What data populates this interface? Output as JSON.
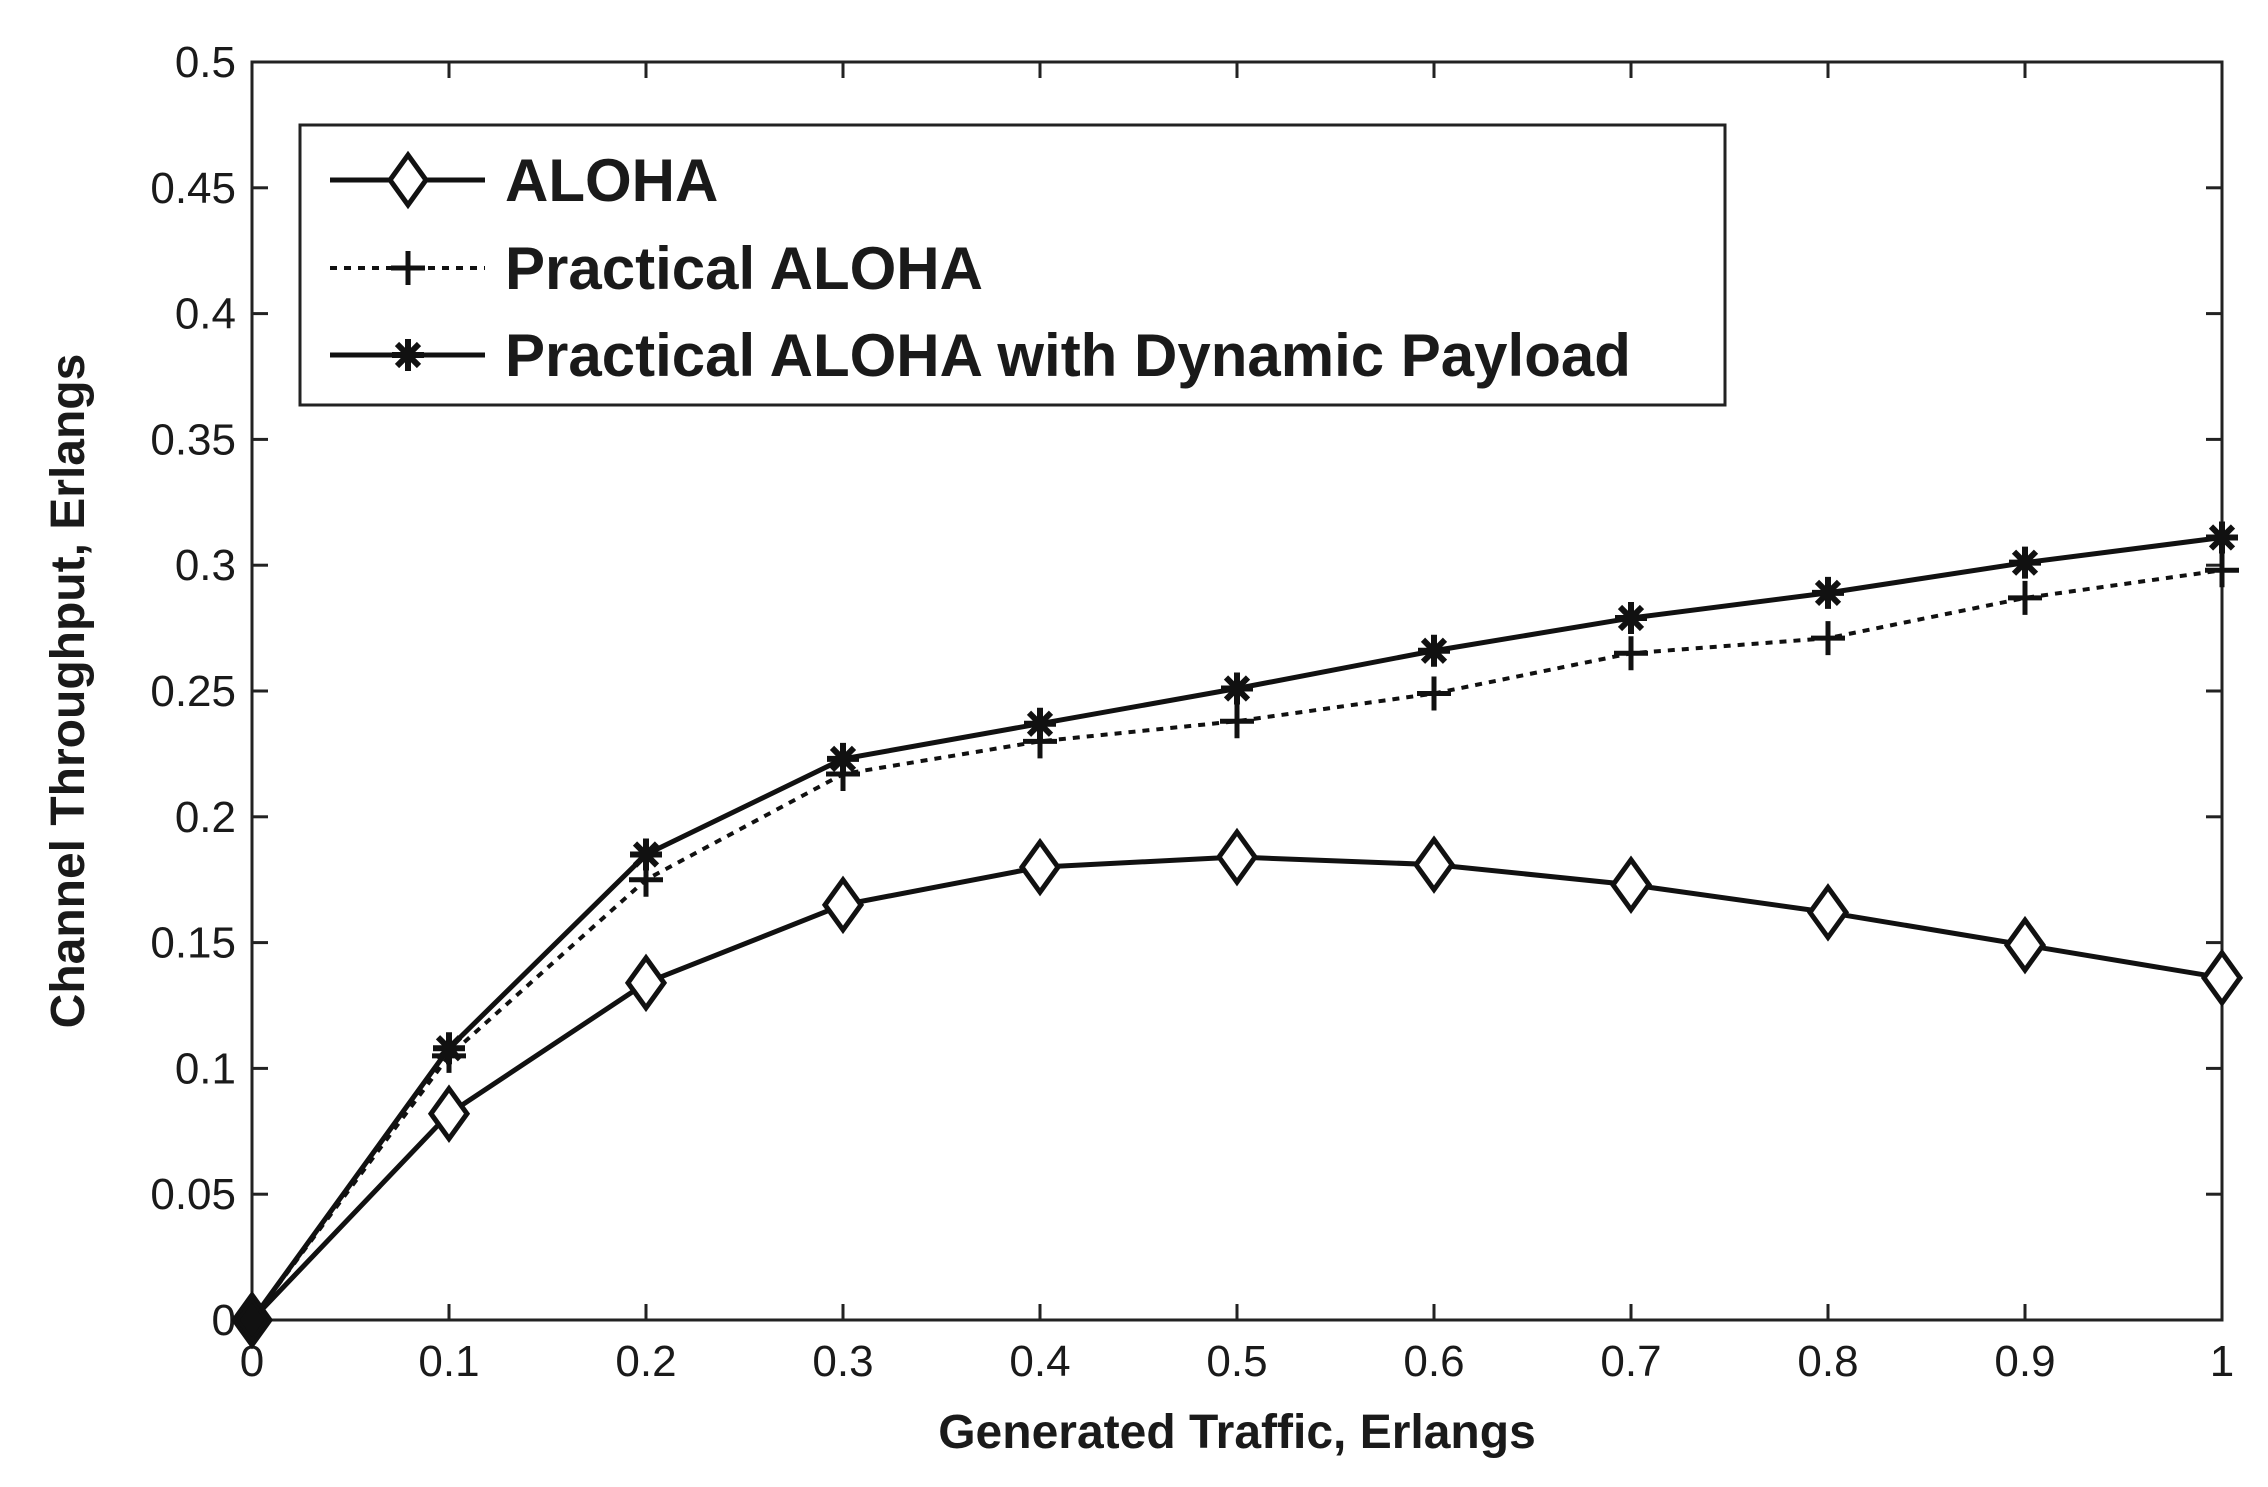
{
  "chart_data": {
    "type": "line",
    "title": "",
    "xlabel": "Generated Traffic, Erlangs",
    "ylabel": "Channel Throughput, Erlangs",
    "xlim": [
      0,
      1
    ],
    "ylim": [
      0,
      0.5
    ],
    "grid": false,
    "legend_position": "top-left",
    "x": [
      0,
      0.1,
      0.2,
      0.3,
      0.4,
      0.5,
      0.6,
      0.7,
      0.8,
      0.9,
      1.0
    ],
    "x_ticks": [
      "0",
      "0.1",
      "0.2",
      "0.3",
      "0.4",
      "0.5",
      "0.6",
      "0.7",
      "0.8",
      "0.9",
      "1"
    ],
    "y_ticks": [
      "0",
      "0.05",
      "0.1",
      "0.15",
      "0.2",
      "0.25",
      "0.3",
      "0.35",
      "0.4",
      "0.45",
      "0.5"
    ],
    "series": [
      {
        "name": "ALOHA",
        "line_style": "solid",
        "marker": "diamond",
        "values": [
          0,
          0.082,
          0.134,
          0.165,
          0.18,
          0.184,
          0.181,
          0.173,
          0.162,
          0.149,
          0.136
        ]
      },
      {
        "name": "Practical ALOHA",
        "line_style": "dotted",
        "marker": "plus",
        "values": [
          0,
          0.105,
          0.175,
          0.217,
          0.23,
          0.238,
          0.249,
          0.265,
          0.271,
          0.287,
          0.298
        ]
      },
      {
        "name": "Practical ALOHA with Dynamic Payload",
        "line_style": "solid",
        "marker": "star",
        "values": [
          0,
          0.108,
          0.185,
          0.223,
          0.237,
          0.251,
          0.266,
          0.279,
          0.289,
          0.301,
          0.311
        ]
      }
    ],
    "colors": {
      "line": "#111111",
      "axis": "#222222",
      "background": "#ffffff"
    }
  }
}
